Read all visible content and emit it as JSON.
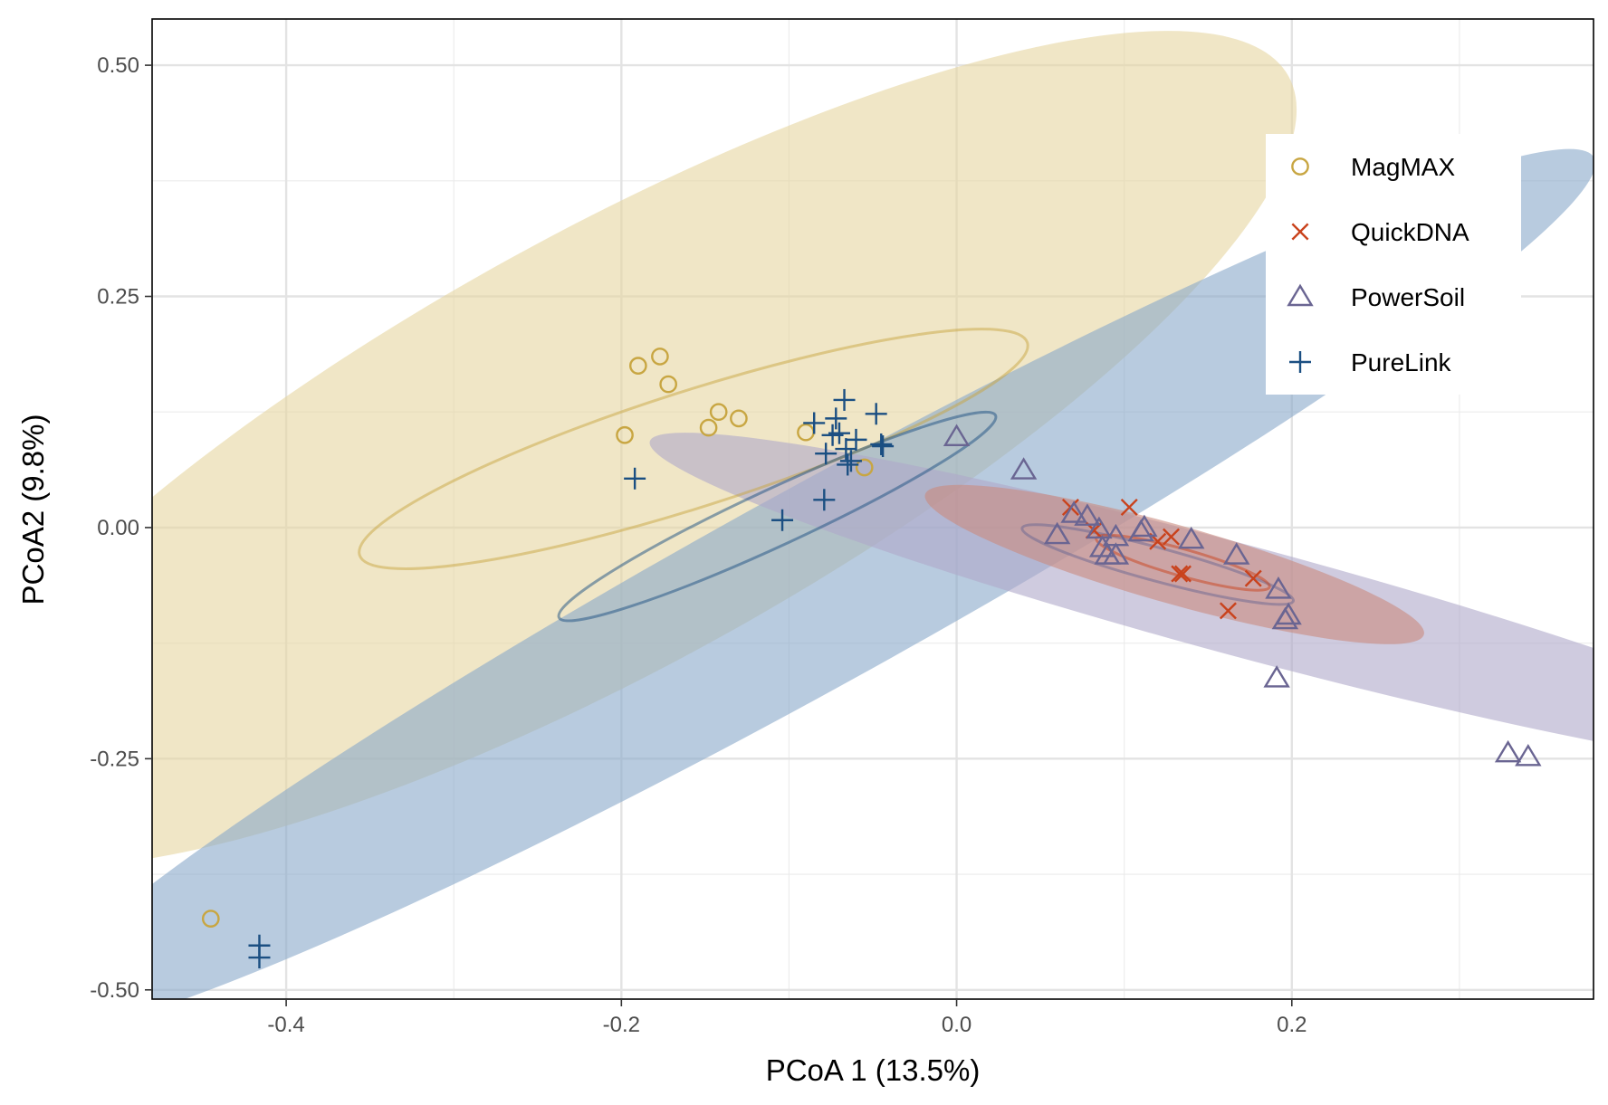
{
  "chart_data": {
    "type": "scatter",
    "title": "",
    "xlabel": "PCoA 1 (13.5%)",
    "ylabel": "PCoA2 (9.8%)",
    "xlim": [
      -0.48,
      0.38
    ],
    "ylim": [
      -0.51,
      0.55
    ],
    "xticks": [
      -0.4,
      -0.2,
      0.0,
      0.2
    ],
    "xtick_labels": [
      "-0.4",
      "-0.2",
      "0.0",
      "0.2"
    ],
    "yticks": [
      -0.5,
      -0.25,
      0.0,
      0.25,
      0.5
    ],
    "ytick_labels": [
      "-0.50",
      "-0.25",
      "0.00",
      "0.25",
      "0.50"
    ],
    "grid": true,
    "legend_position": "top-right",
    "series": [
      {
        "name": "MagMAX",
        "marker": "circle",
        "color": "#C8A642",
        "ellipse_color": "#E6D6A0",
        "ellipse_outer": {
          "cx": -0.205,
          "cy": 0.085,
          "rx": 0.57,
          "ry": 0.16,
          "angle": 45
        },
        "ellipse_inner": {
          "cx": -0.157,
          "cy": 0.085,
          "rx": 0.23,
          "ry": 0.05,
          "angle": 30
        },
        "points": [
          [
            -0.19,
            0.175
          ],
          [
            -0.177,
            0.185
          ],
          [
            -0.172,
            0.155
          ],
          [
            -0.142,
            0.125
          ],
          [
            -0.13,
            0.118
          ],
          [
            -0.148,
            0.108
          ],
          [
            -0.198,
            0.1
          ],
          [
            -0.09,
            0.103
          ],
          [
            -0.055,
            0.065
          ],
          [
            -0.445,
            -0.423
          ]
        ]
      },
      {
        "name": "QuickDNA",
        "marker": "x",
        "color": "#C9421C",
        "ellipse_color": "#C98A7E",
        "ellipse_outer": {
          "cx": 0.13,
          "cy": -0.04,
          "rx": 0.167,
          "ry": 0.035,
          "angle": -27
        },
        "ellipse_inner": {
          "cx": 0.135,
          "cy": -0.038,
          "rx": 0.058,
          "ry": 0.012,
          "angle": -27
        },
        "points": [
          [
            0.068,
            0.022
          ],
          [
            0.103,
            0.022
          ],
          [
            0.082,
            -0.003
          ],
          [
            0.12,
            -0.015
          ],
          [
            0.128,
            -0.01
          ],
          [
            0.133,
            -0.05
          ],
          [
            0.135,
            -0.05
          ],
          [
            0.177,
            -0.055
          ],
          [
            0.162,
            -0.09
          ]
        ]
      },
      {
        "name": "PowerSoil",
        "marker": "triangle",
        "color": "#6A6592",
        "ellipse_color": "#AFA9C9",
        "ellipse_outer": {
          "cx": 0.172,
          "cy": -0.08,
          "rx": 0.395,
          "ry": 0.05,
          "angle": -26
        },
        "ellipse_inner": {
          "cx": 0.12,
          "cy": -0.04,
          "rx": 0.09,
          "ry": 0.015,
          "angle": -26
        },
        "points": [
          [
            0.0,
            0.098
          ],
          [
            0.04,
            0.062
          ],
          [
            0.06,
            -0.008
          ],
          [
            0.07,
            0.015
          ],
          [
            0.078,
            0.012
          ],
          [
            0.085,
            -0.002
          ],
          [
            0.087,
            -0.022
          ],
          [
            0.09,
            -0.03
          ],
          [
            0.095,
            -0.03
          ],
          [
            0.095,
            -0.01
          ],
          [
            0.11,
            -0.005
          ],
          [
            0.112,
            0.0
          ],
          [
            0.14,
            -0.013
          ],
          [
            0.167,
            -0.03
          ],
          [
            0.192,
            -0.067
          ],
          [
            0.196,
            -0.1
          ],
          [
            0.198,
            -0.095
          ],
          [
            0.191,
            -0.163
          ],
          [
            0.329,
            -0.244
          ],
          [
            0.341,
            -0.248
          ]
        ]
      },
      {
        "name": "PureLink",
        "marker": "plus",
        "color": "#1B4F82",
        "ellipse_color": "#88A9C9",
        "ellipse_outer": {
          "cx": -0.09,
          "cy": -0.07,
          "rx": 0.665,
          "ry": 0.073,
          "angle": 45
        },
        "ellipse_inner": {
          "cx": -0.107,
          "cy": 0.012,
          "rx": 0.17,
          "ry": 0.022,
          "angle": 40
        },
        "points": [
          [
            -0.192,
            0.053
          ],
          [
            -0.085,
            0.113
          ],
          [
            -0.072,
            0.118
          ],
          [
            -0.067,
            0.138
          ],
          [
            -0.048,
            0.123
          ],
          [
            -0.074,
            0.1
          ],
          [
            -0.07,
            0.102
          ],
          [
            -0.06,
            0.095
          ],
          [
            -0.044,
            0.088
          ],
          [
            -0.066,
            0.085
          ],
          [
            -0.078,
            0.08
          ],
          [
            -0.065,
            0.068
          ],
          [
            -0.063,
            0.072
          ],
          [
            -0.045,
            0.09
          ],
          [
            -0.079,
            0.03
          ],
          [
            -0.104,
            0.008
          ],
          [
            -0.416,
            -0.452
          ],
          [
            -0.416,
            -0.465
          ]
        ]
      }
    ]
  }
}
